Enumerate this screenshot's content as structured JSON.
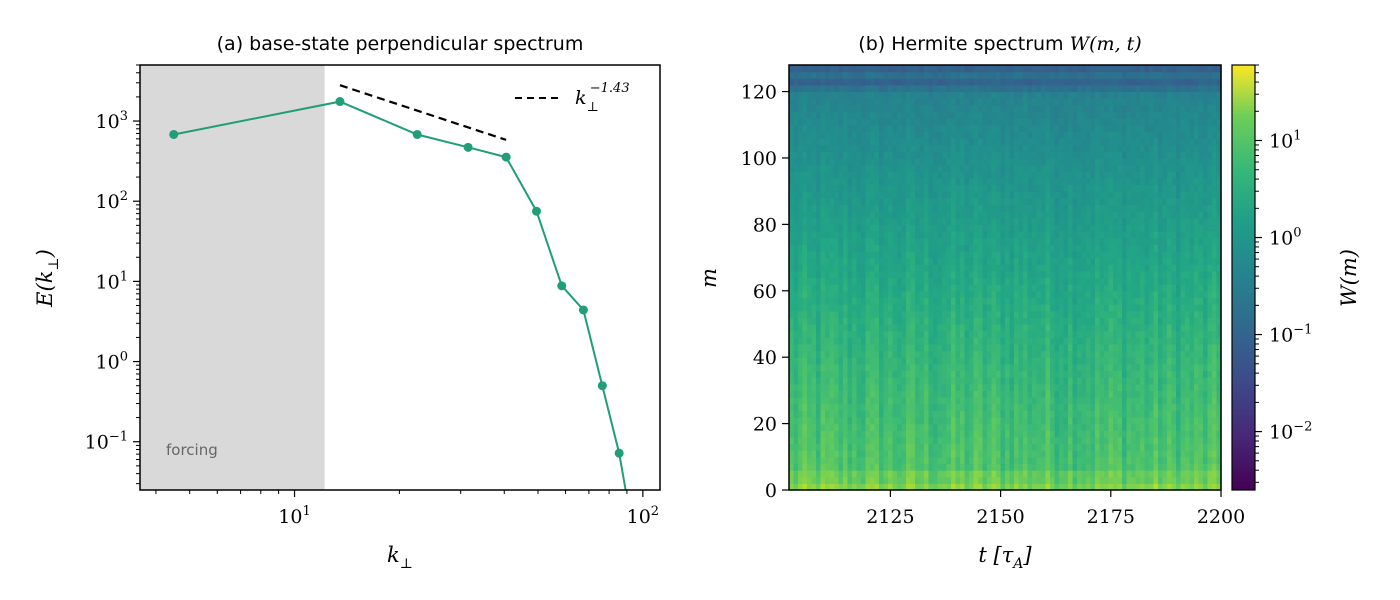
{
  "colors": {
    "series": "#1f9e78",
    "forcing_band": "#d9d9d9",
    "forcing_text": "#666666",
    "reference_line": "#000000",
    "colormap": [
      "#440154",
      "#3b528b",
      "#21918c",
      "#5ec962",
      "#fde725"
    ]
  },
  "chart_data": [
    {
      "type": "line",
      "title_prefix": "(a) ",
      "title_text": "base-state perpendicular spectrum",
      "xlabel": "k⊥",
      "ylabel": "E(k⊥)",
      "xscale": "log",
      "yscale": "log",
      "xlim": [
        3.6,
        112
      ],
      "ylim": [
        0.025,
        5000
      ],
      "x_ticks": [
        {
          "base": "10",
          "exp": "1",
          "value": 10
        },
        {
          "base": "10",
          "exp": "2",
          "value": 100
        }
      ],
      "y_ticks": [
        {
          "base": "10",
          "exp": "−1",
          "value": 0.1
        },
        {
          "base": "10",
          "exp": "0",
          "value": 1
        },
        {
          "base": "10",
          "exp": "1",
          "value": 10
        },
        {
          "base": "10",
          "exp": "2",
          "value": 100
        },
        {
          "base": "10",
          "exp": "3",
          "value": 1000
        }
      ],
      "series": [
        {
          "x": [
            4.5,
            13.5,
            22.5,
            31.5,
            40.5,
            49.5,
            58.5,
            67.5,
            76.5,
            85.5,
            94.5
          ],
          "y": [
            680,
            1750,
            680,
            470,
            355,
            75,
            8.8,
            4.4,
            0.5,
            0.072,
            0.006
          ]
        }
      ],
      "reference_line": {
        "label_base": "k",
        "label_sub": "⊥",
        "label_exp": "−1.43",
        "exponent": -1.43,
        "x": [
          13.5,
          40.5
        ],
        "y_start": 2800,
        "style": "dashed"
      },
      "shaded_region": {
        "x": [
          3.6,
          12.2
        ],
        "label": "forcing"
      },
      "legend": "top-right",
      "grid": false
    },
    {
      "type": "heatmap",
      "title_prefix": "(b) ",
      "title_text": "Hermite spectrum ",
      "title_math": "W(m, t)",
      "xlabel": "t [τA]",
      "ylabel": "m",
      "colorbar_label": "W(m)",
      "xlim": [
        2102,
        2200
      ],
      "ylim": [
        0,
        128
      ],
      "x_ticks": [
        2125,
        2150,
        2175,
        2200
      ],
      "y_ticks": [
        0,
        20,
        40,
        60,
        80,
        100,
        120
      ],
      "colorbar_scale": "log",
      "colorbar_range": [
        0.0025,
        60
      ],
      "colorbar_ticks": [
        {
          "base": "10",
          "exp": "−2",
          "value": 0.01
        },
        {
          "base": "10",
          "exp": "−1",
          "value": 0.1
        },
        {
          "base": "10",
          "exp": "0",
          "value": 1
        },
        {
          "base": "10",
          "exp": "1",
          "value": 10
        }
      ],
      "colormap": "viridis",
      "description_values": {
        "m_low_band_W": 10,
        "m_mid_W": 1,
        "m_high_W": 0.1
      },
      "grid": false
    }
  ]
}
